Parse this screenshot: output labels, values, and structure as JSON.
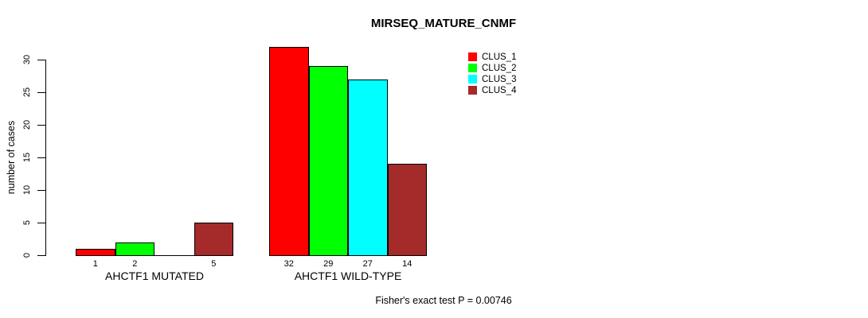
{
  "chart_data": {
    "type": "bar",
    "title": "MIRSEQ_MATURE_CNMF",
    "xlabel": "",
    "ylabel": "number of cases",
    "ylim": [
      0,
      32
    ],
    "yticks": [
      0,
      5,
      10,
      15,
      20,
      25,
      30
    ],
    "grid": false,
    "legend_position": "top-right",
    "series": [
      {
        "name": "CLUS_1",
        "color": "#FF0000"
      },
      {
        "name": "CLUS_2",
        "color": "#00FF00"
      },
      {
        "name": "CLUS_3",
        "color": "#00FFFF"
      },
      {
        "name": "CLUS_4",
        "color": "#A52A2A"
      }
    ],
    "groups": [
      {
        "label": "AHCTF1 MUTATED",
        "values": [
          1,
          2,
          0,
          5
        ],
        "bar_labels": [
          "1",
          "2",
          "",
          "5"
        ]
      },
      {
        "label": "AHCTF1 WILD-TYPE",
        "values": [
          32,
          29,
          27,
          14
        ],
        "bar_labels": [
          "32",
          "29",
          "27",
          "14"
        ]
      }
    ],
    "annotation": "Fisher's exact test P = 0.00746"
  }
}
